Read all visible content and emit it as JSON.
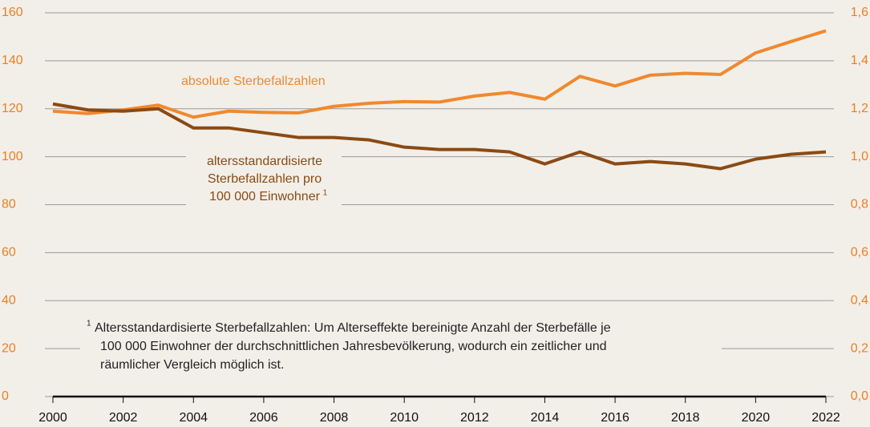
{
  "chart_data": {
    "type": "line",
    "x": [
      2000,
      2001,
      2002,
      2003,
      2004,
      2005,
      2006,
      2007,
      2008,
      2009,
      2010,
      2011,
      2012,
      2013,
      2014,
      2015,
      2016,
      2017,
      2018,
      2019,
      2020,
      2021,
      2022
    ],
    "series": [
      {
        "name": "absolute Sterbefallzahlen",
        "color": "#f0892e",
        "axis": "y2",
        "values": [
          1.19,
          1.18,
          1.195,
          1.215,
          1.165,
          1.19,
          1.185,
          1.183,
          1.21,
          1.223,
          1.23,
          1.228,
          1.253,
          1.268,
          1.24,
          1.335,
          1.295,
          1.34,
          1.348,
          1.343,
          1.433,
          1.48,
          1.525
        ]
      },
      {
        "label_lines": [
          "altersstandardisierte",
          "Sterbefallzahlen pro",
          "100 000 Einwohner"
        ],
        "label_sup": "1",
        "color": "#8b4a12",
        "values": [
          122,
          119.5,
          119,
          120,
          112,
          112,
          110,
          108,
          108,
          107,
          104,
          103,
          103,
          102,
          97,
          102,
          97,
          98,
          97,
          95,
          99,
          101,
          102
        ]
      }
    ],
    "xlim": [
      2000,
      2022
    ],
    "xticks": [
      2000,
      2002,
      2004,
      2006,
      2008,
      2010,
      2012,
      2014,
      2016,
      2018,
      2020,
      2022
    ],
    "ylim": [
      0,
      160
    ],
    "yticks": [
      0,
      20,
      40,
      60,
      80,
      100,
      120,
      140,
      160
    ],
    "y2lim": [
      0,
      1.6
    ],
    "y2ticks": [
      {
        "value": 0,
        "label": "0,0"
      },
      {
        "value": 0.2,
        "label": "0,2"
      },
      {
        "value": 0.4,
        "label": "0,4"
      },
      {
        "value": 0.6,
        "label": "0,6"
      },
      {
        "value": 0.8,
        "label": "0,8"
      },
      {
        "value": 1.0,
        "label": "1,0"
      },
      {
        "value": 1.2,
        "label": "1,2"
      },
      {
        "value": 1.4,
        "label": "1,4"
      },
      {
        "value": 1.6,
        "label": "1,6"
      }
    ],
    "grid": true,
    "footnote": {
      "marker": "1",
      "lines": [
        "Altersstandardisierte Sterbefallzahlen: Um Alterseffekte bereinigte Anzahl der Sterbefälle je",
        "100 000 Einwohner der durchschnittlichen Jahresbevölkerung, wodurch ein zeitlicher und",
        "räumlicher Vergleich möglich ist."
      ]
    }
  }
}
